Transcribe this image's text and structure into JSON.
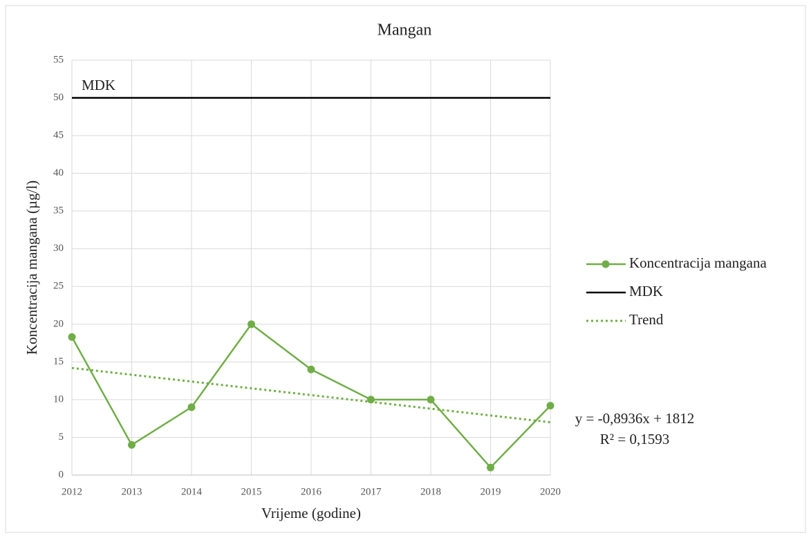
{
  "chart_data": {
    "type": "line",
    "title": "Mangan",
    "x_label": "Vrijeme (godine)",
    "y_label": "Koncentracija mangana (µg/l)",
    "xlim": [
      2012,
      2020
    ],
    "xticks": [
      2012,
      2013,
      2014,
      2015,
      2016,
      2017,
      2018,
      2019,
      2020
    ],
    "ylim": [
      0,
      55
    ],
    "yticks": [
      0,
      5,
      10,
      15,
      20,
      25,
      30,
      35,
      40,
      45,
      50,
      55
    ],
    "grid": true,
    "legend": "right",
    "series": [
      {
        "name": "Koncentracija mangana",
        "color": "#70ad47",
        "style": "solid",
        "markers": true,
        "x": [
          2012,
          2013,
          2014,
          2015,
          2016,
          2017,
          2018,
          2019,
          2020
        ],
        "values": [
          18.3,
          4,
          9,
          20,
          14,
          10,
          10,
          1,
          9.2
        ]
      },
      {
        "name": "MDK",
        "color": "#000000",
        "style": "solid",
        "markers": false,
        "x": [
          2012,
          2020
        ],
        "values": [
          50,
          50
        ]
      },
      {
        "name": "Trend",
        "color": "#70ad47",
        "style": "dotted",
        "markers": false,
        "x": [
          2012,
          2020
        ],
        "values": [
          14.2,
          7.0
        ]
      }
    ],
    "annotations": [
      "MDK",
      "y = -0,8936x + 1812",
      "R² = 0,1593"
    ]
  }
}
